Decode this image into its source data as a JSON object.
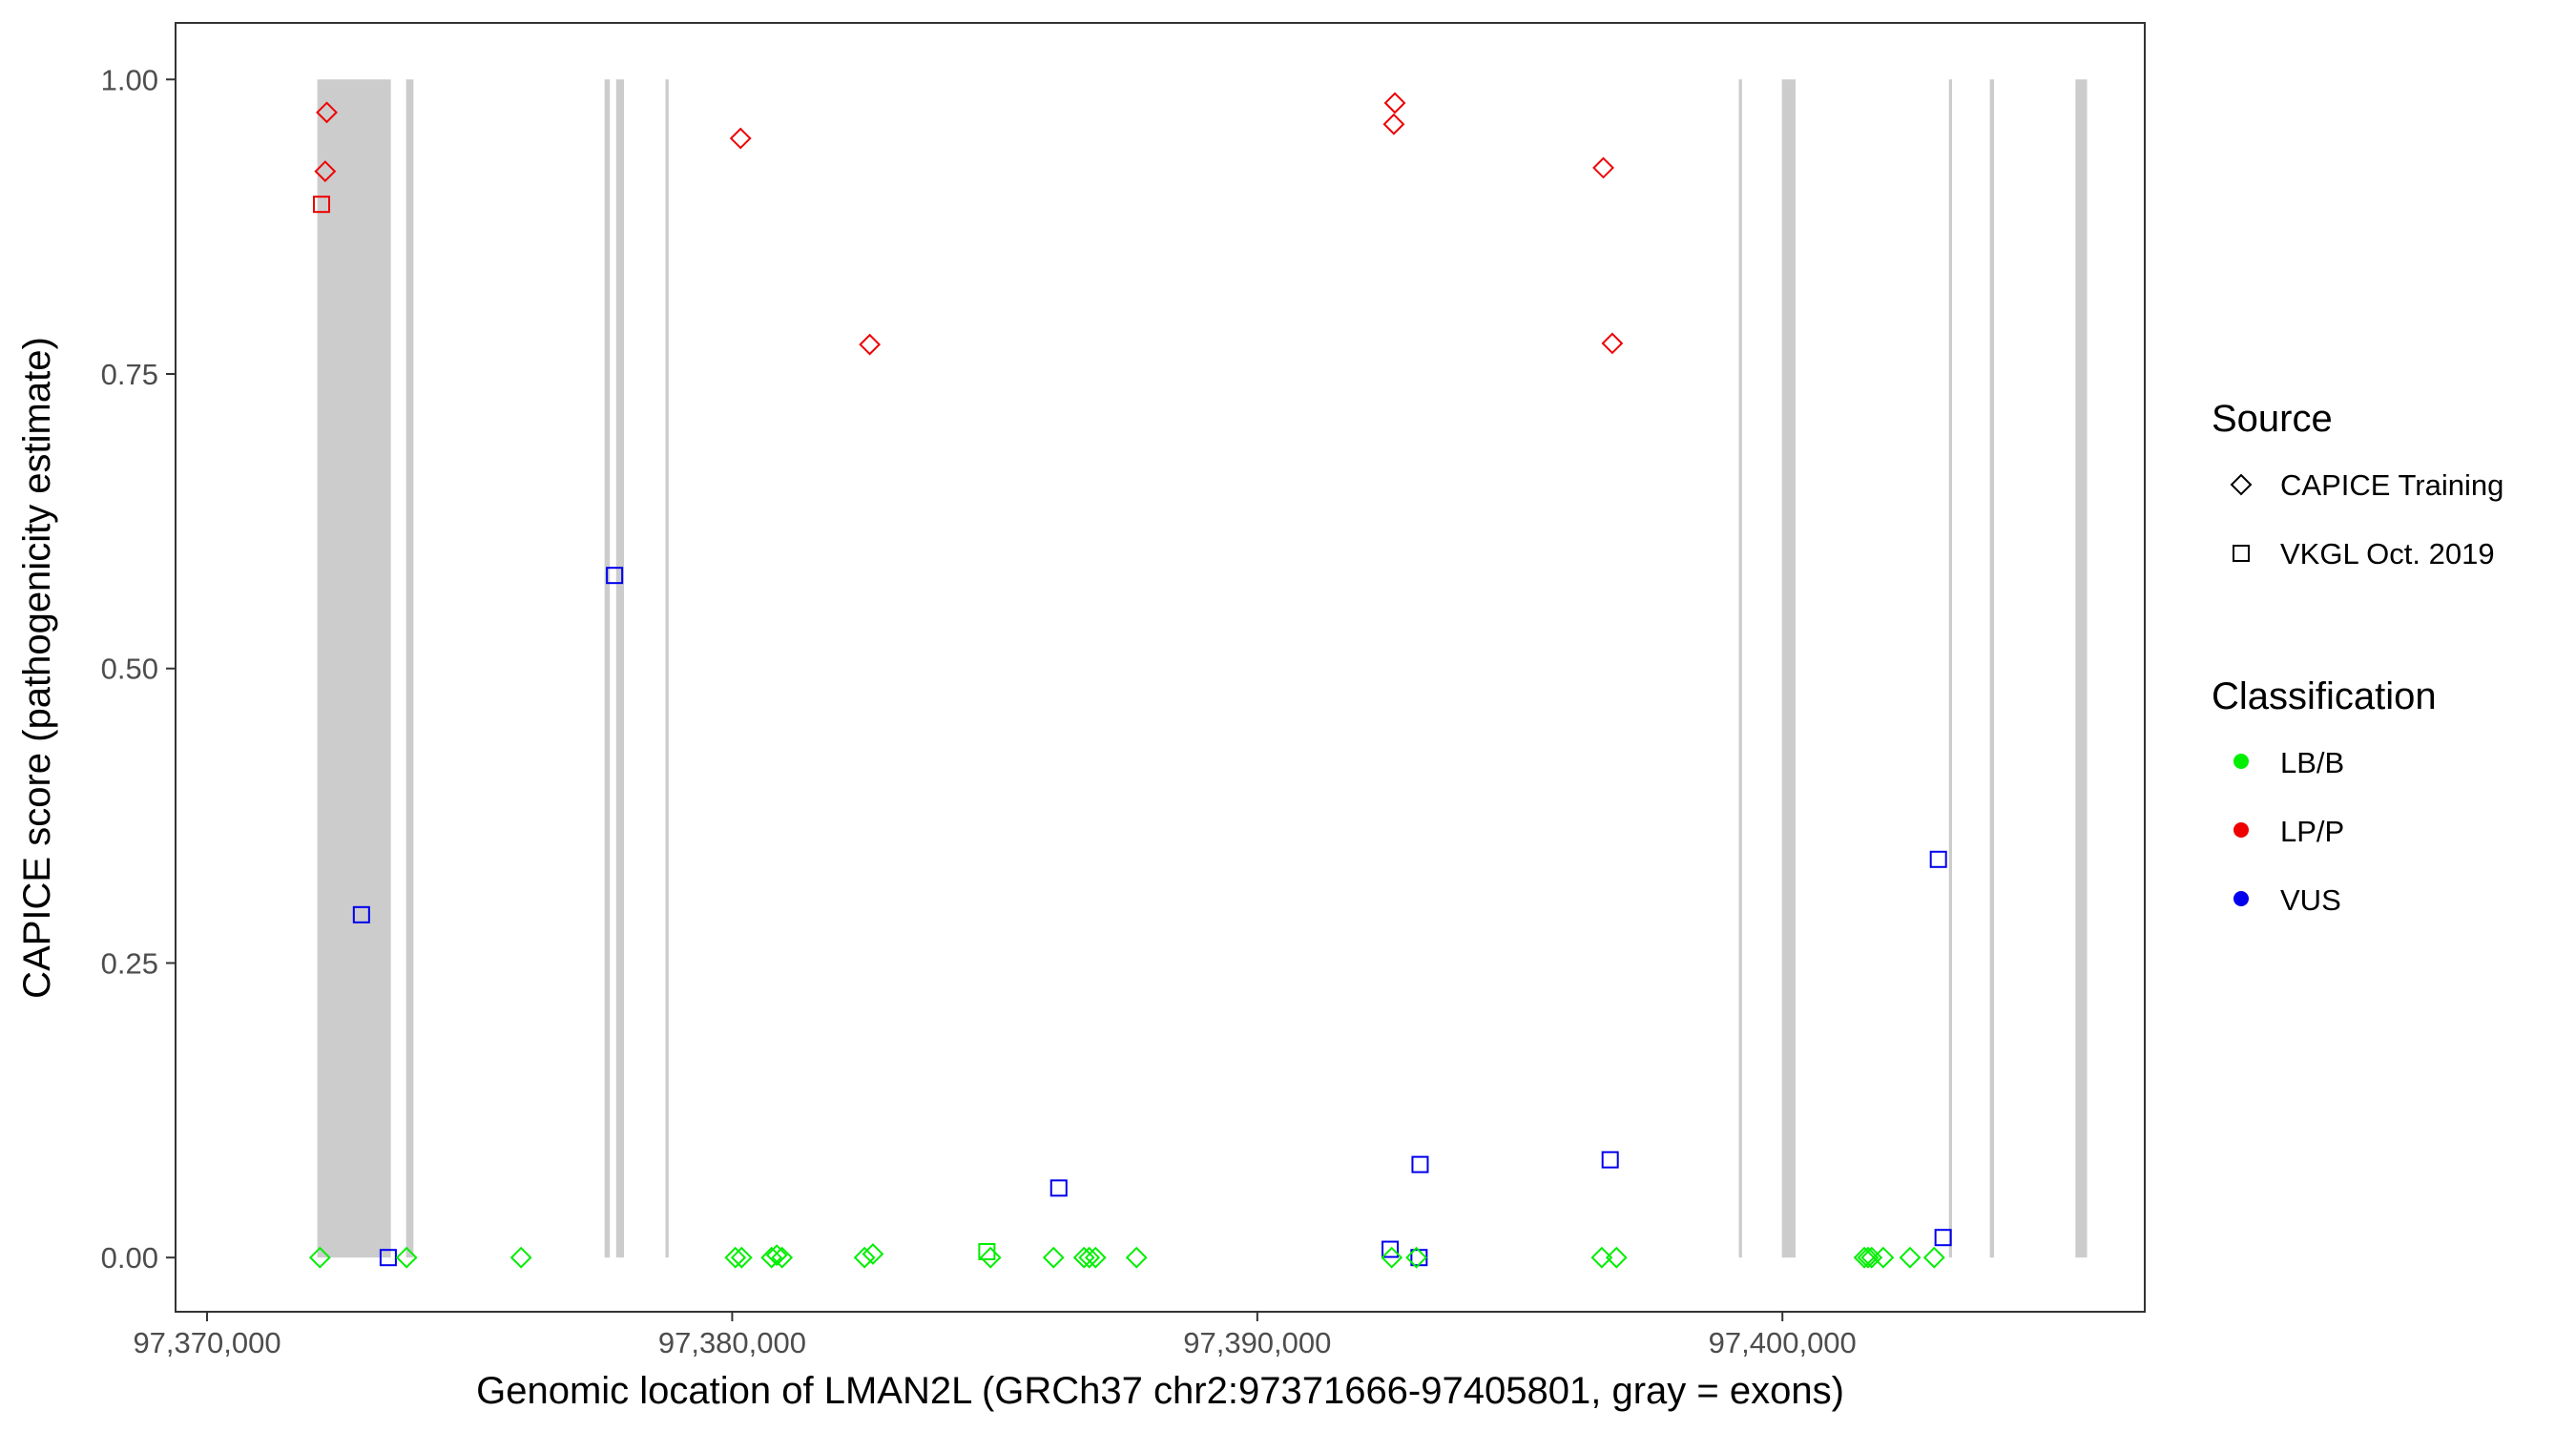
{
  "chart_data": {
    "type": "scatter",
    "xlabel": "Genomic location of LMAN2L (GRCh37 chr2:97371666-97405801, gray = exons)",
    "ylabel": "CAPICE score (pathogenicity estimate)",
    "xlim": [
      97369400,
      97406900
    ],
    "ylim": [
      -0.046,
      1.048
    ],
    "x_ticks": [
      97370000,
      97380000,
      97390000,
      97400000
    ],
    "x_tick_labels": [
      "97,370,000",
      "97,380,000",
      "97,390,000",
      "97,400,000"
    ],
    "y_ticks": [
      0,
      0.25,
      0.5,
      0.75,
      1.0
    ],
    "y_tick_labels": [
      "0.00",
      "0.25",
      "0.50",
      "0.75",
      "1.00"
    ],
    "grid": false,
    "exons": [
      [
        97372100,
        97373500
      ],
      [
        97373790,
        97373930
      ],
      [
        97377570,
        97377670
      ],
      [
        97377790,
        97377940
      ],
      [
        97378730,
        97378790
      ],
      [
        97399170,
        97399230
      ],
      [
        97399990,
        97400250
      ],
      [
        97403170,
        97403230
      ],
      [
        97403950,
        97404030
      ],
      [
        97405580,
        97405801
      ]
    ],
    "legend": {
      "position": "right",
      "source_title": "Source",
      "source_items": [
        {
          "label": "CAPICE Training",
          "shape": "diamond"
        },
        {
          "label": "VKGL Oct. 2019",
          "shape": "square"
        }
      ],
      "class_title": "Classification",
      "class_items": [
        {
          "label": "LB/B",
          "color": "#00ee00"
        },
        {
          "label": "LP/P",
          "color": "#ee0000"
        },
        {
          "label": "VUS",
          "color": "#0000ee"
        }
      ]
    },
    "series": [
      {
        "source": "CAPICE Training",
        "classification": "LP/P",
        "shape": "diamond",
        "color": "#ee0000",
        "points": [
          [
            97372280,
            0.972
          ],
          [
            97372250,
            0.922
          ],
          [
            97380160,
            0.95
          ],
          [
            97382620,
            0.775
          ],
          [
            97392620,
            0.98
          ],
          [
            97392600,
            0.962
          ],
          [
            97396590,
            0.925
          ],
          [
            97396760,
            0.776
          ]
        ]
      },
      {
        "source": "VKGL Oct. 2019",
        "classification": "LP/P",
        "shape": "square",
        "color": "#ee0000",
        "points": [
          [
            97372180,
            0.894
          ]
        ]
      },
      {
        "source": "VKGL Oct. 2019",
        "classification": "VUS",
        "shape": "square",
        "color": "#0000ee",
        "points": [
          [
            97372940,
            0.291
          ],
          [
            97373450,
            0.0
          ],
          [
            97377760,
            0.579
          ],
          [
            97386220,
            0.059
          ],
          [
            97392530,
            0.007
          ],
          [
            97393080,
            0.0
          ],
          [
            97393100,
            0.079
          ],
          [
            97396720,
            0.083
          ],
          [
            97402970,
            0.338
          ],
          [
            97403060,
            0.017
          ]
        ]
      },
      {
        "source": "VKGL Oct. 2019",
        "classification": "LB/B",
        "shape": "square",
        "color": "#00ee00",
        "points": [
          [
            97384850,
            0.005
          ]
        ]
      },
      {
        "source": "CAPICE Training",
        "classification": "LB/B",
        "shape": "diamond",
        "color": "#00ee00",
        "points": [
          [
            97372150,
            0.0
          ],
          [
            97373800,
            0.0
          ],
          [
            97375980,
            0.0
          ],
          [
            97380060,
            0.0
          ],
          [
            97380180,
            0.0
          ],
          [
            97380750,
            0.0
          ],
          [
            97380850,
            0.002
          ],
          [
            97380950,
            0.0
          ],
          [
            97382520,
            0.0
          ],
          [
            97382680,
            0.003
          ],
          [
            97384920,
            0.0
          ],
          [
            97386120,
            0.0
          ],
          [
            97386700,
            0.0
          ],
          [
            97386800,
            0.0
          ],
          [
            97386920,
            0.0
          ],
          [
            97387700,
            0.0
          ],
          [
            97392560,
            0.0
          ],
          [
            97393030,
            0.0
          ],
          [
            97396560,
            0.0
          ],
          [
            97396840,
            0.0
          ],
          [
            97401560,
            0.0
          ],
          [
            97401630,
            0.0
          ],
          [
            97401700,
            0.0
          ],
          [
            97401920,
            0.0
          ],
          [
            97402430,
            0.0
          ],
          [
            97402890,
            0.0
          ]
        ]
      }
    ]
  }
}
